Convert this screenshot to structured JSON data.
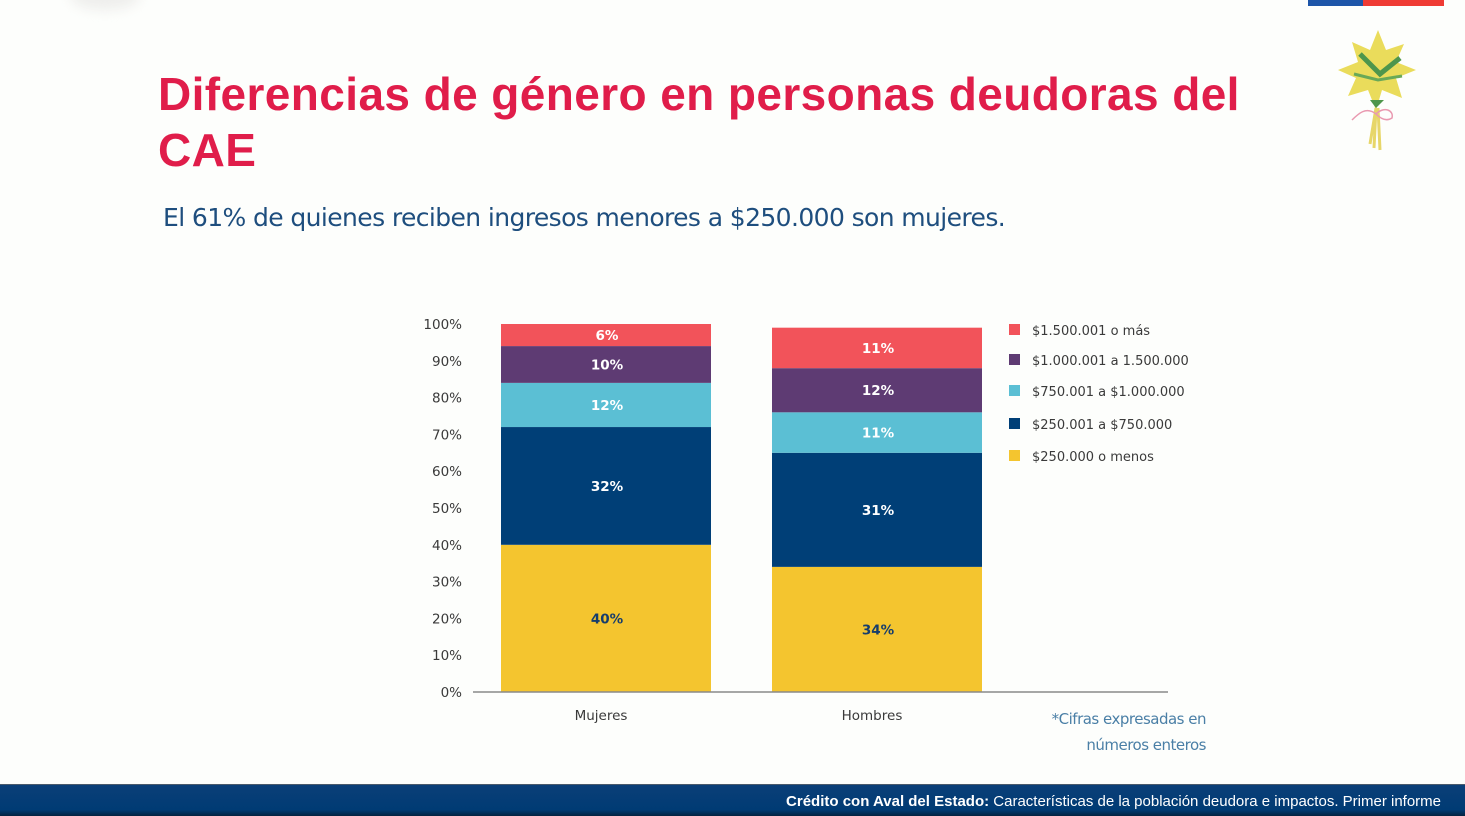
{
  "slide": {
    "title": "Diferencias de género en personas deudoras del CAE",
    "subtitle": "El 61% de quienes reciben ingresos menores a $250.000 son mujeres.",
    "footnote_line1": "*Cifras expresadas en",
    "footnote_line2": "números enteros",
    "footer_bold": "Crédito con Aval del Estado:",
    "footer_rest": " Características de la población deudora e impactos. Primer informe",
    "flag_colors": [
      "#1d55a8",
      "#ef3b34"
    ],
    "ornament_icon": "flower-bouquet-icon"
  },
  "chart_data": {
    "type": "bar",
    "stacked": true,
    "title": "",
    "xlabel": "",
    "ylabel": "",
    "ylim": [
      0,
      100
    ],
    "y_ticks": [
      "0%",
      "10%",
      "20%",
      "30%",
      "40%",
      "50%",
      "60%",
      "70%",
      "80%",
      "90%",
      "100%"
    ],
    "categories": [
      "Mujeres",
      "Hombres"
    ],
    "legend_position": "right",
    "series": [
      {
        "name": "$250.000 o menos",
        "color": "#f4c52f",
        "label_color": "#163d6c",
        "values": [
          40,
          34
        ],
        "labels": [
          "40%",
          "34%"
        ]
      },
      {
        "name": "$250.001 a $750.000",
        "color": "#003f77",
        "label_color": "#ffffff",
        "values": [
          32,
          31
        ],
        "labels": [
          "32%",
          "31%"
        ]
      },
      {
        "name": "$750.001 a $1.000.000",
        "color": "#5bbfd4",
        "label_color": "#ffffff",
        "values": [
          12,
          11
        ],
        "labels": [
          "12%",
          "11%"
        ]
      },
      {
        "name": "$1.000.001 a 1.500.000",
        "color": "#5e3b73",
        "label_color": "#ffffff",
        "values": [
          10,
          12
        ],
        "labels": [
          "10%",
          "12%"
        ]
      },
      {
        "name": "$1.500.001 o más",
        "color": "#f2535a",
        "label_color": "#ffffff",
        "values": [
          6,
          11
        ],
        "labels": [
          "6%",
          "11%"
        ]
      }
    ],
    "legend_order": [
      "$1.500.001 o más",
      "$1.000.001 a 1.500.000",
      "$750.001 a $1.000.000",
      "$250.001 a $750.000",
      "$250.000 o menos"
    ]
  }
}
